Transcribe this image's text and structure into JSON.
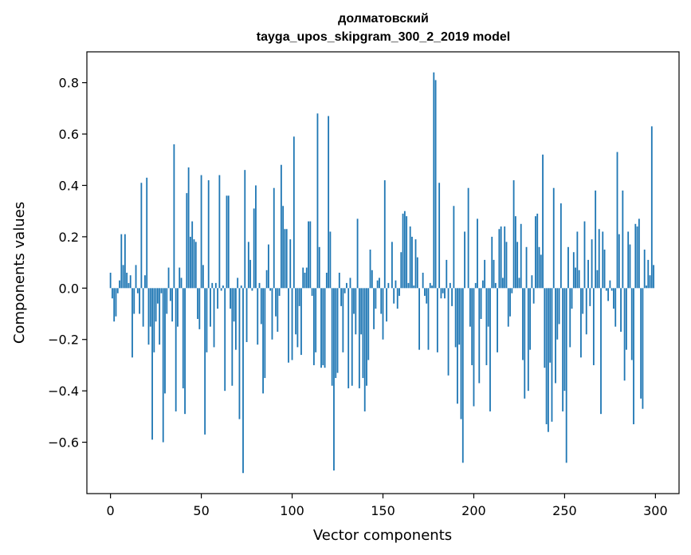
{
  "chart_data": {
    "type": "bar",
    "title_line1": "долматовский",
    "title_line2": "tayga_upos_skipgram_300_2_2019 model",
    "xlabel": "Vector components",
    "ylabel": "Components values",
    "xlim": [
      -13,
      313
    ],
    "ylim": [
      -0.8,
      0.92
    ],
    "xticks": [
      0,
      50,
      100,
      150,
      200,
      250,
      300
    ],
    "yticks": [
      -0.6,
      -0.4,
      -0.2,
      0.0,
      0.2,
      0.4,
      0.6,
      0.8
    ],
    "ytick_labels": [
      "−0.6",
      "−0.4",
      "−0.2",
      "0.0",
      "0.2",
      "0.4",
      "0.6",
      "0.8"
    ],
    "xtick_labels": [
      "0",
      "50",
      "100",
      "150",
      "200",
      "250",
      "300"
    ],
    "bar_color": "#1f77b4",
    "grid": false,
    "x": [
      0,
      1,
      2,
      3,
      4,
      5,
      6,
      7,
      8,
      9,
      10,
      11,
      12,
      13,
      14,
      15,
      16,
      17,
      18,
      19,
      20,
      21,
      22,
      23,
      24,
      25,
      26,
      27,
      28,
      29,
      30,
      31,
      32,
      33,
      34,
      35,
      36,
      37,
      38,
      39,
      40,
      41,
      42,
      43,
      44,
      45,
      46,
      47,
      48,
      49,
      50,
      51,
      52,
      53,
      54,
      55,
      56,
      57,
      58,
      59,
      60,
      61,
      62,
      63,
      64,
      65,
      66,
      67,
      68,
      69,
      70,
      71,
      72,
      73,
      74,
      75,
      76,
      77,
      78,
      79,
      80,
      81,
      82,
      83,
      84,
      85,
      86,
      87,
      88,
      89,
      90,
      91,
      92,
      93,
      94,
      95,
      96,
      97,
      98,
      99,
      100,
      101,
      102,
      103,
      104,
      105,
      106,
      107,
      108,
      109,
      110,
      111,
      112,
      113,
      114,
      115,
      116,
      117,
      118,
      119,
      120,
      121,
      122,
      123,
      124,
      125,
      126,
      127,
      128,
      129,
      130,
      131,
      132,
      133,
      134,
      135,
      136,
      137,
      138,
      139,
      140,
      141,
      142,
      143,
      144,
      145,
      146,
      147,
      148,
      149,
      150,
      151,
      152,
      153,
      154,
      155,
      156,
      157,
      158,
      159,
      160,
      161,
      162,
      163,
      164,
      165,
      166,
      167,
      168,
      169,
      170,
      171,
      172,
      173,
      174,
      175,
      176,
      177,
      178,
      179,
      180,
      181,
      182,
      183,
      184,
      185,
      186,
      187,
      188,
      189,
      190,
      191,
      192,
      193,
      194,
      195,
      196,
      197,
      198,
      199,
      200,
      201,
      202,
      203,
      204,
      205,
      206,
      207,
      208,
      209,
      210,
      211,
      212,
      213,
      214,
      215,
      216,
      217,
      218,
      219,
      220,
      221,
      222,
      223,
      224,
      225,
      226,
      227,
      228,
      229,
      230,
      231,
      232,
      233,
      234,
      235,
      236,
      237,
      238,
      239,
      240,
      241,
      242,
      243,
      244,
      245,
      246,
      247,
      248,
      249,
      250,
      251,
      252,
      253,
      254,
      255,
      256,
      257,
      258,
      259,
      260,
      261,
      262,
      263,
      264,
      265,
      266,
      267,
      268,
      269,
      270,
      271,
      272,
      273,
      274,
      275,
      276,
      277,
      278,
      279,
      280,
      281,
      282,
      283,
      284,
      285,
      286,
      287,
      288,
      289,
      290,
      291,
      292,
      293,
      294,
      295,
      296,
      297,
      298,
      299
    ],
    "values": [
      0.06,
      -0.04,
      -0.13,
      -0.11,
      -0.02,
      0.03,
      0.21,
      0.09,
      0.21,
      0.06,
      0.02,
      0.05,
      -0.27,
      -0.1,
      0.09,
      -0.02,
      -0.1,
      0.41,
      -0.15,
      0.05,
      0.43,
      -0.22,
      -0.15,
      -0.59,
      -0.25,
      -0.13,
      -0.06,
      -0.22,
      -0.02,
      -0.6,
      -0.41,
      -0.1,
      0.08,
      -0.05,
      -0.13,
      0.56,
      -0.48,
      -0.15,
      0.08,
      0.04,
      -0.39,
      -0.49,
      0.37,
      0.47,
      0.2,
      0.26,
      0.19,
      0.18,
      -0.12,
      -0.16,
      0.44,
      0.09,
      -0.57,
      -0.25,
      0.42,
      -0.15,
      0.02,
      -0.23,
      0.02,
      -0.08,
      0.44,
      -0.01,
      0.01,
      -0.4,
      0.36,
      0.36,
      -0.08,
      -0.38,
      -0.13,
      -0.24,
      0.04,
      -0.51,
      0.01,
      -0.72,
      0.46,
      -0.21,
      0.18,
      0.11,
      -0.01,
      0.31,
      0.4,
      -0.22,
      0.02,
      -0.14,
      -0.41,
      -0.35,
      0.07,
      0.17,
      -0.01,
      -0.2,
      0.39,
      -0.11,
      -0.17,
      -0.03,
      0.48,
      0.32,
      0.23,
      0.23,
      -0.29,
      0.19,
      -0.28,
      0.59,
      -0.18,
      -0.23,
      -0.07,
      -0.26,
      0.08,
      0.06,
      0.08,
      0.26,
      0.26,
      -0.03,
      -0.3,
      -0.25,
      0.68,
      0.16,
      -0.31,
      -0.3,
      -0.31,
      0.06,
      0.67,
      0.22,
      -0.38,
      -0.71,
      -0.35,
      -0.33,
      0.06,
      -0.07,
      -0.25,
      -0.02,
      0.02,
      -0.39,
      0.04,
      -0.38,
      -0.1,
      -0.18,
      0.27,
      -0.39,
      -0.18,
      -0.35,
      -0.48,
      -0.38,
      -0.28,
      0.15,
      0.07,
      -0.16,
      -0.08,
      0.03,
      0.04,
      -0.1,
      -0.2,
      0.42,
      -0.13,
      0.02,
      0.0,
      0.18,
      -0.06,
      0.03,
      -0.08,
      -0.03,
      0.14,
      0.29,
      0.3,
      0.28,
      0.02,
      0.24,
      0.2,
      0.01,
      0.19,
      0.12,
      -0.24,
      0.0,
      0.06,
      -0.03,
      -0.06,
      -0.24,
      0.02,
      0.01,
      0.84,
      0.81,
      -0.25,
      0.41,
      -0.04,
      -0.02,
      -0.04,
      0.11,
      -0.34,
      0.02,
      -0.07,
      0.32,
      -0.23,
      -0.45,
      -0.22,
      -0.51,
      -0.68,
      0.22,
      0.0,
      0.39,
      -0.15,
      -0.3,
      -0.46,
      0.02,
      0.27,
      -0.37,
      -0.12,
      0.03,
      0.11,
      -0.3,
      -0.15,
      -0.48,
      0.2,
      0.11,
      0.02,
      -0.25,
      0.23,
      0.24,
      0.04,
      0.24,
      0.18,
      -0.15,
      -0.11,
      -0.02,
      0.42,
      0.28,
      0.18,
      0.04,
      0.25,
      -0.28,
      -0.43,
      0.16,
      -0.4,
      -0.24,
      0.05,
      -0.06,
      0.28,
      0.29,
      0.16,
      0.13,
      0.52,
      -0.31,
      -0.53,
      -0.56,
      -0.29,
      -0.52,
      0.39,
      -0.37,
      -0.2,
      -0.14,
      0.33,
      -0.48,
      -0.4,
      -0.68,
      0.16,
      -0.23,
      -0.08,
      0.14,
      0.08,
      0.22,
      0.07,
      -0.27,
      -0.1,
      0.26,
      -0.18,
      0.11,
      -0.07,
      0.19,
      -0.3,
      0.38,
      0.07,
      0.23,
      -0.49,
      0.22,
      0.15,
      -0.01,
      -0.05,
      0.03,
      -0.01,
      -0.08,
      -0.15,
      0.53,
      0.21,
      -0.17,
      0.38,
      -0.36,
      -0.24,
      0.22,
      0.17,
      -0.28,
      -0.53,
      0.25,
      0.24,
      0.27,
      -0.43,
      -0.47,
      0.15,
      0.01,
      0.11,
      0.05,
      0.63,
      0.09
    ]
  }
}
